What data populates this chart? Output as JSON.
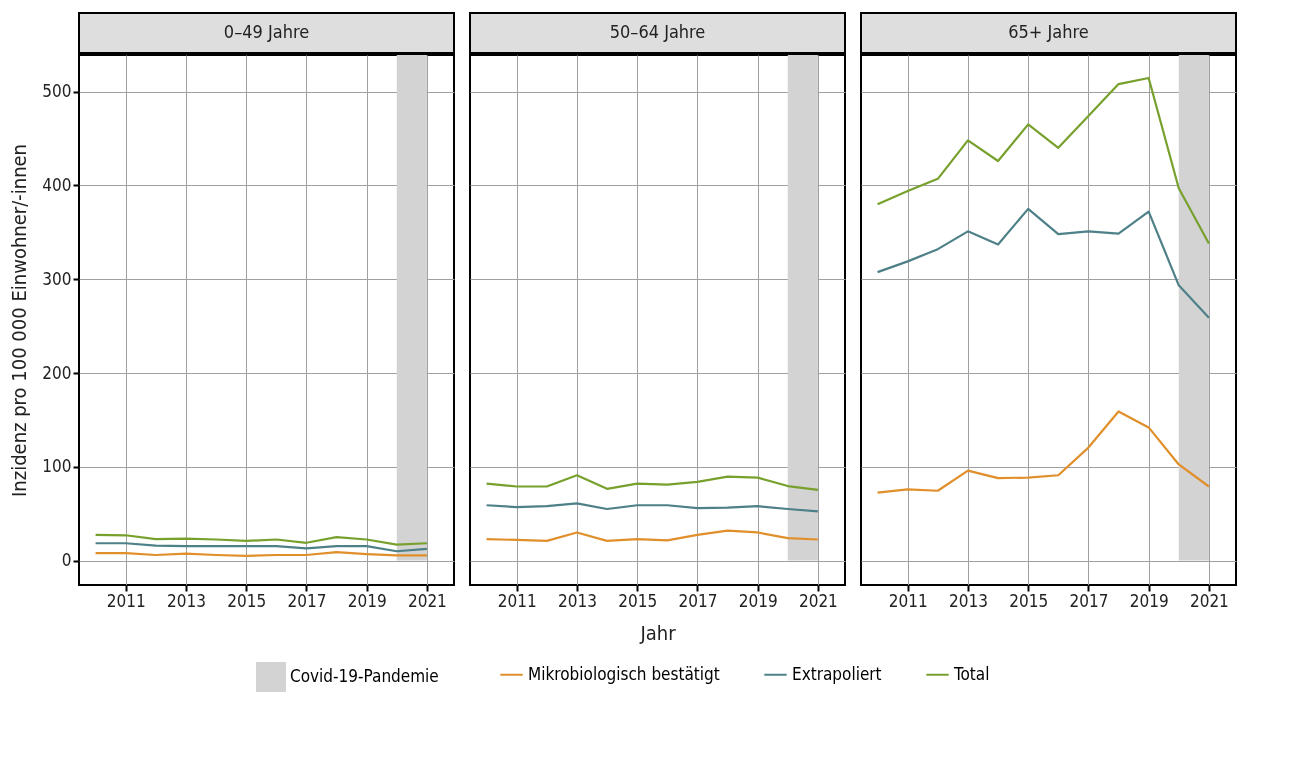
{
  "chart_data": [
    {
      "type": "line",
      "title": "0–49 Jahre",
      "ylabel": "Inzidenz pro 100 000 Einwohner/-innen",
      "x": [
        2010,
        2011,
        2012,
        2013,
        2014,
        2015,
        2016,
        2017,
        2018,
        2019,
        2020,
        2021
      ],
      "series": [
        {
          "name": "Mikrobiologisch bestätigt",
          "color": "#e08f2b",
          "values": [
            8,
            8,
            6,
            7.5,
            6,
            5,
            6,
            6,
            9,
            7,
            5.5,
            5.5
          ]
        },
        {
          "name": "Extrapoliert",
          "color": "#4e8088",
          "values": [
            18.5,
            18.5,
            16,
            15.5,
            15.5,
            15.5,
            15.5,
            13,
            15.5,
            15.5,
            10,
            12.5
          ]
        },
        {
          "name": "Total",
          "color": "#77a02d",
          "values": [
            27.5,
            27,
            23,
            23.5,
            22.5,
            21,
            22.5,
            19,
            25,
            22.5,
            17,
            18.5
          ]
        }
      ],
      "bands": [
        {
          "axis": "x",
          "from": 2020,
          "to": 2021,
          "label": "Covid-19-Pandemie",
          "color": "#d3d3d3"
        }
      ],
      "xlim": [
        2009.45,
        2021.9
      ],
      "xticks": [
        2011,
        2013,
        2015,
        2017,
        2019,
        2021
      ],
      "ylim": [
        -26,
        539
      ],
      "yticks": [
        0,
        100,
        200,
        300,
        400,
        500
      ],
      "grid": true,
      "legend": "bottom"
    },
    {
      "type": "line",
      "title": "50–64 Jahre",
      "xlabel": "Jahr",
      "x": [
        2010,
        2011,
        2012,
        2013,
        2014,
        2015,
        2016,
        2017,
        2018,
        2019,
        2020,
        2021
      ],
      "series": [
        {
          "color": "#e08f2b",
          "values": [
            23,
            22,
            21,
            30,
            21,
            23,
            21.5,
            27.5,
            32,
            30,
            24,
            22.5
          ]
        },
        {
          "color": "#4e8088",
          "values": [
            59,
            57,
            58,
            61,
            55,
            59,
            59,
            56,
            56.5,
            58,
            55,
            52.5
          ]
        },
        {
          "color": "#77a02d",
          "values": [
            82,
            79,
            79,
            91,
            76.5,
            82,
            81,
            84,
            89.5,
            88.5,
            79.5,
            75.5
          ]
        }
      ],
      "bands": [
        {
          "axis": "x",
          "from": 2020,
          "to": 2021,
          "color": "#d3d3d3"
        }
      ],
      "xlim": [
        2009.45,
        2021.9
      ],
      "xticks": [
        2011,
        2013,
        2015,
        2017,
        2019,
        2021
      ],
      "ylim": [
        -26,
        539
      ],
      "yticks": [
        0,
        100,
        200,
        300,
        400,
        500
      ],
      "tick_labels": "x",
      "grid": true
    },
    {
      "type": "line",
      "title": "65+ Jahre",
      "x": [
        2010,
        2011,
        2012,
        2013,
        2014,
        2015,
        2016,
        2017,
        2018,
        2019,
        2020,
        2021
      ],
      "series": [
        {
          "color": "#e08f2b",
          "values": [
            72.5,
            76,
            74.5,
            96,
            88,
            88.5,
            91,
            120.5,
            159,
            142,
            102.5,
            79
          ]
        },
        {
          "color": "#4e8088",
          "values": [
            307.5,
            319,
            332,
            351,
            337,
            375,
            348,
            351,
            348.5,
            372,
            293.5,
            259
          ]
        },
        {
          "color": "#77a02d",
          "values": [
            380,
            394,
            407,
            448,
            426,
            465,
            440,
            474,
            508,
            514.5,
            397,
            338
          ]
        }
      ],
      "bands": [
        {
          "axis": "x",
          "from": 2020,
          "to": 2021,
          "color": "#d3d3d3"
        }
      ],
      "xlim": [
        2009.45,
        2021.9
      ],
      "xticks": [
        2011,
        2013,
        2015,
        2017,
        2019,
        2021
      ],
      "ylim": [
        -26,
        539
      ],
      "yticks": [
        0,
        100,
        200,
        300,
        400,
        500
      ],
      "tick_labels": "x",
      "grid": true
    }
  ]
}
